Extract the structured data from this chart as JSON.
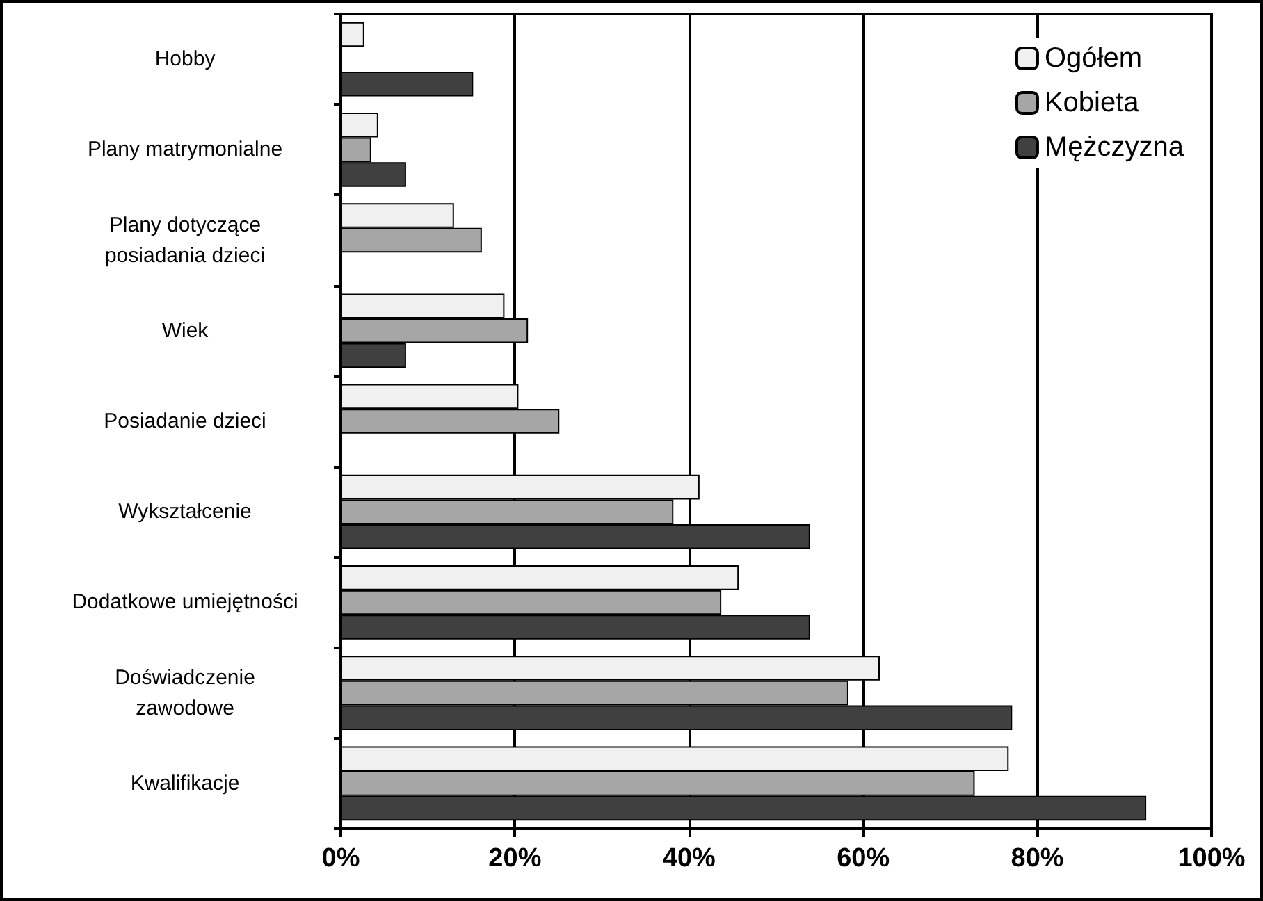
{
  "chart_data": {
    "type": "bar",
    "orientation": "horizontal",
    "categories": [
      "Hobby",
      "Plany matrymonialne",
      "Plany dotyczące\nposiadania dzieci",
      "Wiek",
      "Posiadanie dzieci",
      "Wykształcenie",
      "Dodatkowe umiejętności",
      "Doświadczenie\nzawodowe",
      "Kwalifikacje"
    ],
    "series": [
      {
        "name": "Ogółem",
        "color": "#f0f0f0",
        "values": [
          2.7,
          4.3,
          13.0,
          18.8,
          20.4,
          41.2,
          45.7,
          61.9,
          76.7
        ]
      },
      {
        "name": "Kobieta",
        "color": "#a6a6a6",
        "values": [
          null,
          3.5,
          16.2,
          21.5,
          25.1,
          38.2,
          43.7,
          58.3,
          72.8
        ]
      },
      {
        "name": "Mężczyzna",
        "color": "#404040",
        "values": [
          15.2,
          7.5,
          null,
          7.5,
          null,
          53.9,
          53.9,
          77.1,
          92.5
        ]
      }
    ],
    "xlim": [
      0,
      100
    ],
    "xticks": [
      {
        "value": 0,
        "label": "0%"
      },
      {
        "value": 20,
        "label": "20%"
      },
      {
        "value": 40,
        "label": "40%"
      },
      {
        "value": 60,
        "label": "60%"
      },
      {
        "value": 80,
        "label": "80%"
      },
      {
        "value": 100,
        "label": "100%"
      }
    ],
    "grid": "x",
    "legend": "top right"
  }
}
